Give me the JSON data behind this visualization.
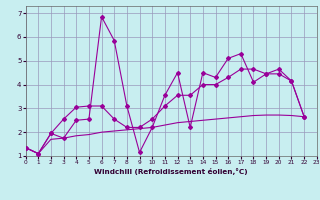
{
  "xlabel": "Windchill (Refroidissement éolien,°C)",
  "background_color": "#c8eef0",
  "grid_color": "#9999bb",
  "line_color": "#990099",
  "xlim": [
    0,
    23
  ],
  "ylim": [
    1,
    7.2
  ],
  "xticks": [
    0,
    1,
    2,
    3,
    4,
    5,
    6,
    7,
    8,
    9,
    10,
    11,
    12,
    13,
    14,
    15,
    16,
    17,
    18,
    19,
    20,
    21,
    22,
    23
  ],
  "yticks": [
    1,
    2,
    3,
    4,
    5,
    6,
    7
  ],
  "series1_x": [
    0,
    1,
    2,
    3,
    4,
    5,
    6,
    7,
    8,
    9,
    10,
    11,
    12,
    13,
    14,
    15,
    16,
    17,
    18,
    19,
    20,
    21,
    22
  ],
  "series1_y": [
    1.35,
    1.1,
    1.95,
    1.75,
    2.5,
    2.55,
    6.85,
    5.85,
    3.1,
    1.15,
    2.2,
    3.55,
    4.5,
    2.2,
    4.5,
    4.3,
    5.1,
    5.3,
    4.1,
    4.45,
    4.65,
    4.15,
    2.65
  ],
  "series2_x": [
    0,
    1,
    2,
    3,
    4,
    5,
    6,
    7,
    8,
    9,
    10,
    11,
    12,
    13,
    14,
    15,
    16,
    17,
    18,
    19,
    20,
    21,
    22
  ],
  "series2_y": [
    1.35,
    1.1,
    1.95,
    2.55,
    3.05,
    3.1,
    3.1,
    2.55,
    2.2,
    2.2,
    2.55,
    3.1,
    3.55,
    3.55,
    4.0,
    4.0,
    4.3,
    4.65,
    4.65,
    4.45,
    4.45,
    4.15,
    2.65
  ],
  "series3_x": [
    0,
    1,
    2,
    3,
    4,
    5,
    6,
    7,
    8,
    9,
    10,
    11,
    12,
    13,
    14,
    15,
    16,
    17,
    18,
    19,
    20,
    21,
    22
  ],
  "series3_y": [
    1.35,
    1.1,
    1.7,
    1.75,
    1.85,
    1.9,
    2.0,
    2.05,
    2.1,
    2.15,
    2.2,
    2.3,
    2.4,
    2.45,
    2.5,
    2.55,
    2.6,
    2.65,
    2.7,
    2.72,
    2.72,
    2.7,
    2.65
  ]
}
